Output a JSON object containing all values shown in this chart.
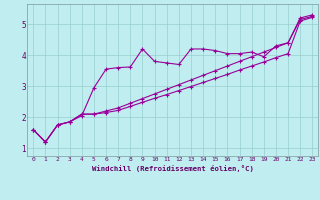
{
  "xlabel": "Windchill (Refroidissement éolien,°C)",
  "bg_color": "#c0eef0",
  "grid_color": "#98cece",
  "line_color": "#990099",
  "xlim": [
    -0.5,
    23.5
  ],
  "ylim": [
    0.75,
    5.65
  ],
  "xticks": [
    0,
    1,
    2,
    3,
    4,
    5,
    6,
    7,
    8,
    9,
    10,
    11,
    12,
    13,
    14,
    15,
    16,
    17,
    18,
    19,
    20,
    21,
    22,
    23
  ],
  "yticks": [
    1,
    2,
    3,
    4,
    5
  ],
  "line1_x": [
    0,
    1,
    2,
    3,
    4,
    5,
    6,
    7,
    8,
    9,
    10,
    11,
    12,
    13,
    14,
    15,
    16,
    17,
    18,
    19,
    20,
    21,
    22,
    23
  ],
  "line1_y": [
    1.6,
    1.2,
    1.75,
    1.85,
    2.05,
    2.95,
    3.55,
    3.6,
    3.62,
    4.2,
    3.8,
    3.75,
    3.7,
    4.2,
    4.2,
    4.15,
    4.05,
    4.05,
    4.1,
    3.95,
    4.3,
    4.4,
    5.2,
    5.3
  ],
  "line2_x": [
    0,
    1,
    2,
    3,
    4,
    5,
    6,
    7,
    8,
    9,
    10,
    11,
    12,
    13,
    14,
    15,
    16,
    17,
    18,
    19,
    20,
    21,
    22,
    23
  ],
  "line2_y": [
    1.6,
    1.2,
    1.75,
    1.85,
    2.1,
    2.1,
    2.2,
    2.3,
    2.45,
    2.6,
    2.75,
    2.9,
    3.05,
    3.2,
    3.35,
    3.5,
    3.65,
    3.8,
    3.95,
    4.1,
    4.25,
    4.4,
    5.15,
    5.25
  ],
  "line3_x": [
    0,
    1,
    2,
    3,
    4,
    5,
    6,
    7,
    8,
    9,
    10,
    11,
    12,
    13,
    14,
    15,
    16,
    17,
    18,
    19,
    20,
    21,
    22,
    23
  ],
  "line3_y": [
    1.6,
    1.2,
    1.75,
    1.85,
    2.1,
    2.1,
    2.15,
    2.22,
    2.35,
    2.48,
    2.61,
    2.73,
    2.86,
    2.99,
    3.12,
    3.25,
    3.38,
    3.52,
    3.65,
    3.78,
    3.92,
    4.05,
    5.1,
    5.22
  ]
}
